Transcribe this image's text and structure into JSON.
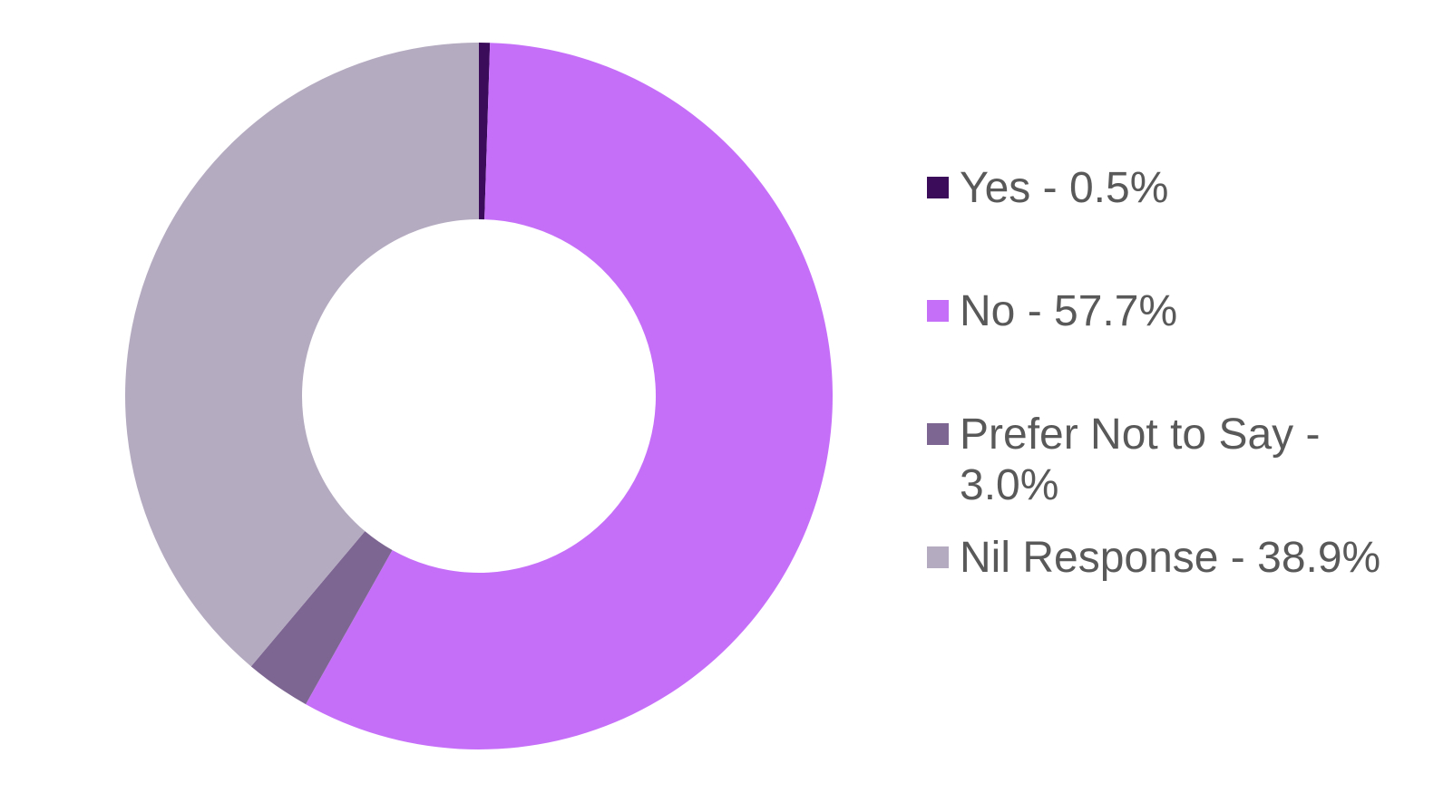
{
  "chart_data": {
    "type": "pie",
    "variant": "donut",
    "slices": [
      {
        "label": "Yes - 0.5%",
        "value": 0.5,
        "color": "#3B0C59"
      },
      {
        "label": "No - 57.7%",
        "value": 57.7,
        "color": "#C56FF9"
      },
      {
        "label": "Prefer Not to Say - 3.0%",
        "value": 3.0,
        "color": "#7E6693"
      },
      {
        "label": "Nil Response - 38.9%",
        "value": 38.9,
        "color": "#B5ABC1"
      }
    ],
    "legend_position": "right"
  }
}
